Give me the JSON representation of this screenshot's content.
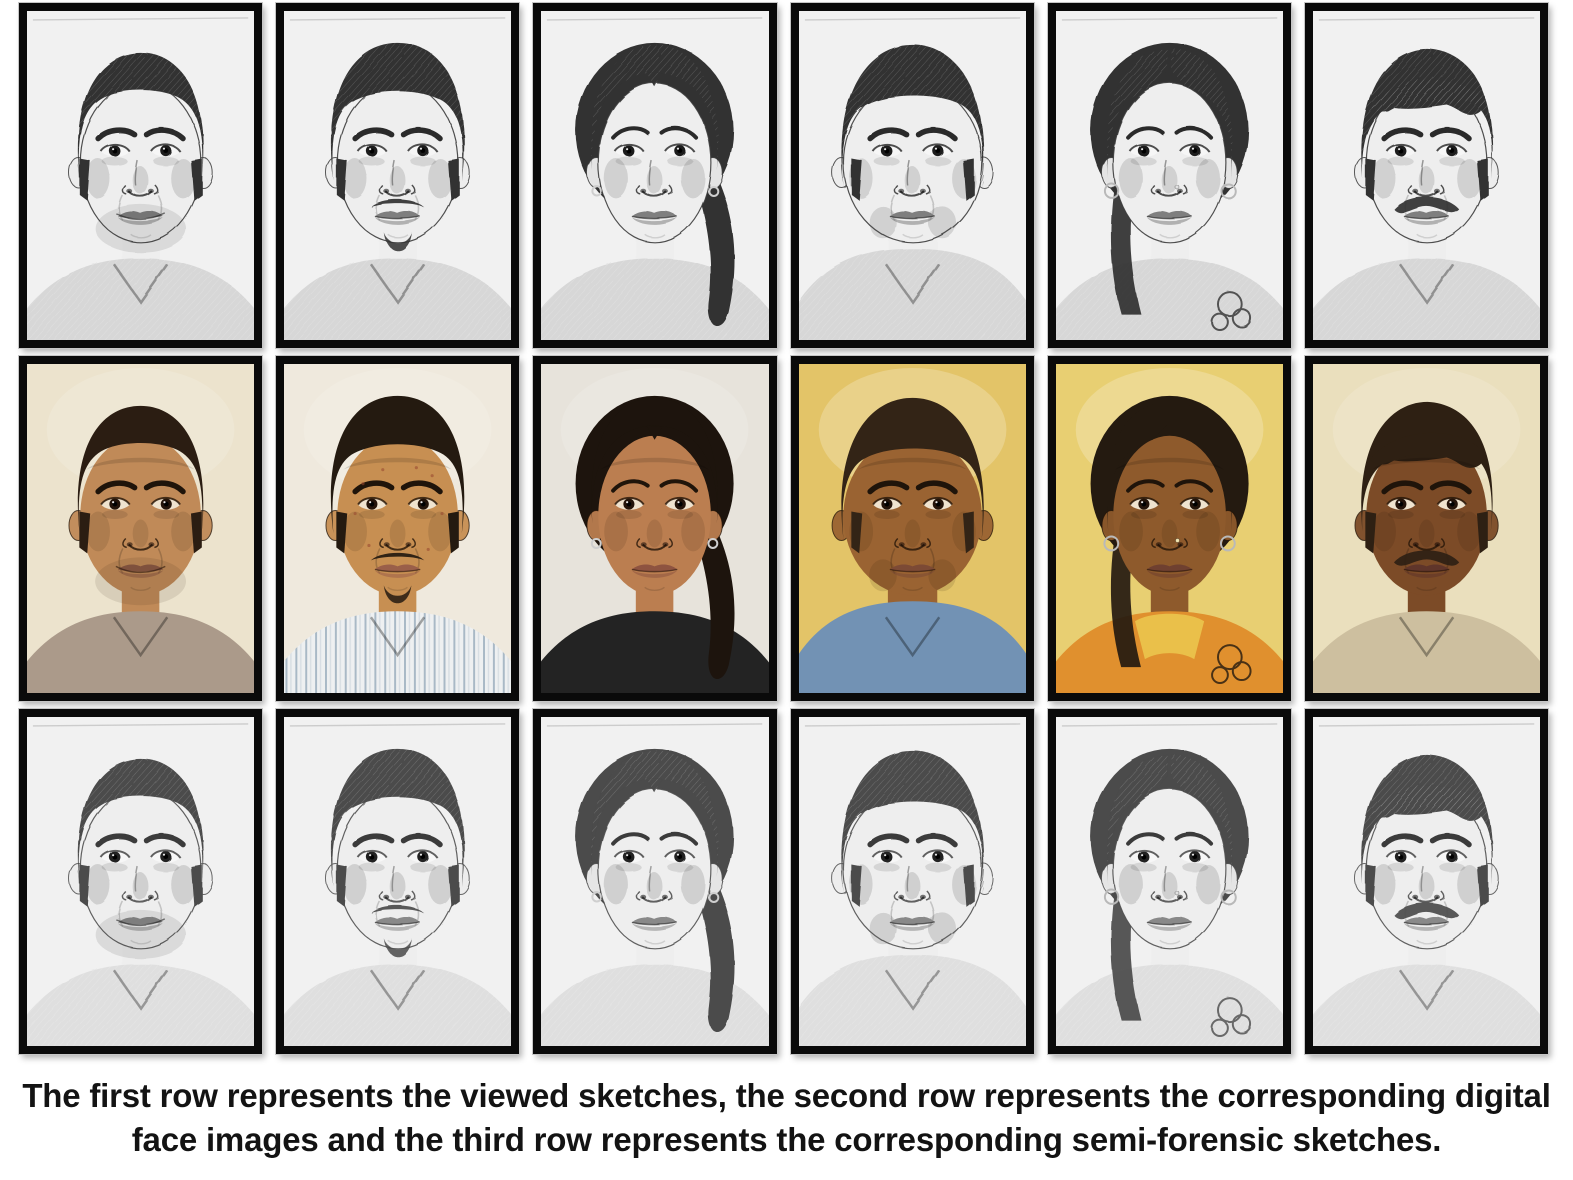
{
  "page_background": "#ffffff",
  "caption": {
    "line1": "The first row represents the viewed sketches, the second row represents the corresponding digital",
    "line2": "face images and the third row represents the corresponding semi-forensic sketches.",
    "color": "#131313"
  },
  "grid": {
    "rows": 3,
    "cols": 6
  },
  "rows": [
    {
      "key": "viewed-sketch",
      "kind": "sketch",
      "desc": "viewed sketches",
      "paper": "#f1f2ee",
      "pal": {
        "skin": "#edefe9",
        "hair": "#303130",
        "shirt": "#d7d8d2",
        "line": "rgba(60,60,60,0.9)",
        "brow": "#2c2c2c",
        "iris": "#1a1a1a",
        "scl": "#f6f6f3",
        "lip": "#7f7f7c",
        "shade": "rgba(80,80,80,0.18)"
      }
    },
    {
      "key": "digital-photo",
      "kind": "photo",
      "desc": "digital face images",
      "paper": "#e8e0cc",
      "pal": {
        "line": "rgba(35,20,8,0.8)",
        "brow": "#1f140a",
        "iris": "#24140a",
        "scl": "#efe3cf",
        "shade": "rgba(45,22,5,0.12)"
      }
    },
    {
      "key": "semi-forensic-sketch",
      "kind": "sketch",
      "desc": "semi-forensic sketches",
      "paper": "#f1f1f5",
      "pal": {
        "skin": "#eeeef3",
        "hair": "#4b4b4e",
        "shirt": "#dfdfe3",
        "line": "rgba(80,80,84,0.9)",
        "brow": "#3b3b3d",
        "iris": "#202022",
        "scl": "#f7f7fa",
        "lip": "#89898c",
        "shade": "rgba(90,90,95,0.2)"
      }
    }
  ],
  "subjects": [
    {
      "id": 1,
      "gender": "m",
      "build": "avg",
      "hairstyle": "short",
      "mustache": false,
      "goatee": false,
      "stubble": true,
      "earrings": false,
      "nose_stud": false,
      "smile": true,
      "desc": "man with short dark hair, slight smile, collared shirt",
      "photo": {
        "bg": "#ece3cd",
        "skin": "#c08a58",
        "hair": "#2b1d12",
        "shirt": "#ab9a8a",
        "lip": "#8a5743"
      }
    },
    {
      "id": 2,
      "gender": "m",
      "build": "avg",
      "hairstyle": "fluffy",
      "mustache": true,
      "goatee": true,
      "stubble": false,
      "earrings": false,
      "nose_stud": false,
      "smile": false,
      "desc": "young man with thick fluffy hair, moustache and chin beard, striped shirt",
      "photo": {
        "bg": "#efe9dd",
        "skin": "#c78f52",
        "hair": "#241a10",
        "shirt": "stripes",
        "lip": "#9a5f49",
        "acne": true
      }
    },
    {
      "id": 3,
      "gender": "f",
      "build": "avg",
      "hairstyle": "tied",
      "mustache": false,
      "goatee": false,
      "stubble": false,
      "earrings": true,
      "nose_stud": false,
      "smile": false,
      "desc": "woman with hair tied back and a side ponytail, earrings, dark top",
      "photo": {
        "bg": "#e7e3db",
        "skin": "#bb7e50",
        "hair": "#1d140d",
        "shirt": "#232323",
        "lip": "#8e5340"
      }
    },
    {
      "id": 4,
      "gender": "m",
      "build": "heavy",
      "hairstyle": "thick",
      "mustache": false,
      "goatee": false,
      "stubble": false,
      "earrings": false,
      "nose_stud": false,
      "smile": false,
      "desc": "heavy-set man with thick dark hair, blue shirt",
      "photo": {
        "bg": "#e3c468",
        "skin": "#9a6332",
        "hair": "#332416",
        "shirt": "#7292b4",
        "lip": "#7c4a35"
      }
    },
    {
      "id": 5,
      "gender": "f",
      "build": "avg",
      "hairstyle": "part",
      "mustache": false,
      "goatee": false,
      "stubble": false,
      "earrings": true,
      "nose_stud": true,
      "smile": false,
      "desc": "woman with centre-parted hair, nose stud, hoop earrings, orange top",
      "photo": {
        "bg": "#e8cf72",
        "skin": "#8e5a2c",
        "hair": "#241a10",
        "shirt": "#e0902e",
        "collar": "#eac04a",
        "lip": "#6f4030"
      }
    },
    {
      "id": 6,
      "gender": "m",
      "build": "avg",
      "hairstyle": "swept",
      "mustache": true,
      "goatee": false,
      "stubble": false,
      "earrings": false,
      "nose_stud": false,
      "smile": false,
      "desc": "man with side-swept fringe and thick moustache, khaki shirt",
      "photo": {
        "bg": "#eadfbd",
        "skin": "#7c4b27",
        "hair": "#2e2013",
        "shirt": "#cdbf9f",
        "lip": "#5f352a"
      }
    }
  ]
}
